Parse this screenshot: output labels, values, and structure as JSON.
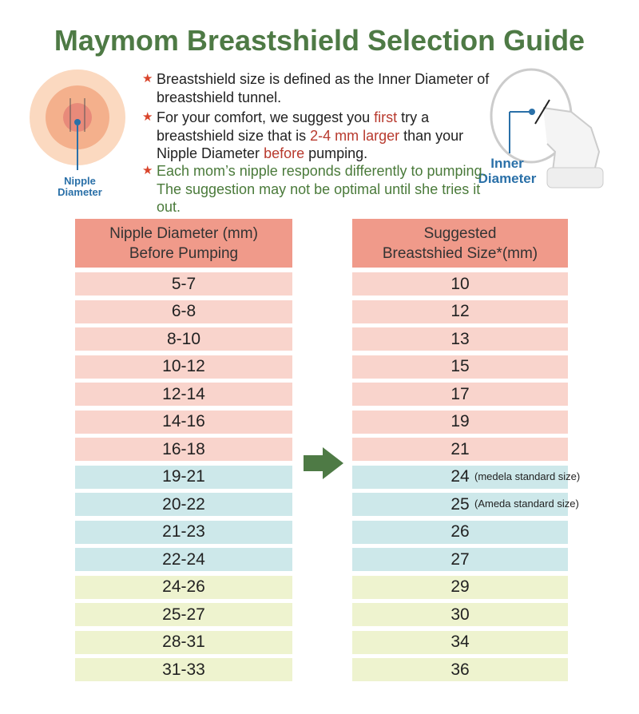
{
  "header": {
    "title": "Maymom Breastshield Selection Guide"
  },
  "illustrations": {
    "nipple_label": [
      "Nipple",
      "Diameter"
    ],
    "shield_label": [
      "Inner",
      "Diameter"
    ]
  },
  "bullets": [
    {
      "parts": [
        {
          "text": "Breastshield size is defined as the Inner Diameter of breastshield tunnel.",
          "color": "#222222"
        }
      ]
    },
    {
      "parts": [
        {
          "text": "For your comfort, we suggest you ",
          "color": "#222222"
        },
        {
          "text": "first",
          "color": "#b83a2e"
        },
        {
          "text": " try a breastshield size that is ",
          "color": "#222222"
        },
        {
          "text": "2-4 mm larger",
          "color": "#b83a2e"
        },
        {
          "text": " than your Nipple Diameter ",
          "color": "#222222"
        },
        {
          "text": "before",
          "color": "#b83a2e"
        },
        {
          "text": " pumping.",
          "color": "#222222"
        }
      ]
    },
    {
      "parts": [
        {
          "text": "Each mom’s nipple responds differently to pumping. The suggestion may not be optimal until she tries it out.",
          "color": "#4a7a3a"
        }
      ]
    }
  ],
  "table": {
    "headers": [
      [
        "Nipple Diameter (mm)",
        "Before Pumping"
      ],
      [
        "Suggested",
        "Breastshied Size*(mm)"
      ]
    ],
    "header_color": "#f09a8a",
    "rows": [
      {
        "nipple": "5-7",
        "size": "10",
        "color": "#f9d4cc"
      },
      {
        "nipple": "6-8",
        "size": "12",
        "color": "#f9d4cc"
      },
      {
        "nipple": "8-10",
        "size": "13",
        "color": "#f9d4cc"
      },
      {
        "nipple": "10-12",
        "size": "15",
        "color": "#f9d4cc"
      },
      {
        "nipple": "12-14",
        "size": "17",
        "color": "#f9d4cc"
      },
      {
        "nipple": "14-16",
        "size": "19",
        "color": "#f9d4cc"
      },
      {
        "nipple": "16-18",
        "size": "21",
        "color": "#f9d4cc"
      },
      {
        "nipple": "19-21",
        "size": "24",
        "note": "(medela standard size)",
        "color": "#cde8ea"
      },
      {
        "nipple": "20-22",
        "size": "25",
        "note": "(Ameda standard size)",
        "color": "#cde8ea"
      },
      {
        "nipple": "21-23",
        "size": "26",
        "color": "#cde8ea"
      },
      {
        "nipple": "22-24",
        "size": "27",
        "color": "#cde8ea"
      },
      {
        "nipple": "24-26",
        "size": "29",
        "color": "#eef3cf"
      },
      {
        "nipple": "25-27",
        "size": "30",
        "color": "#eef3cf"
      },
      {
        "nipple": "28-31",
        "size": "34",
        "color": "#eef3cf"
      },
      {
        "nipple": "31-33",
        "size": "36",
        "color": "#eef3cf"
      }
    ]
  }
}
